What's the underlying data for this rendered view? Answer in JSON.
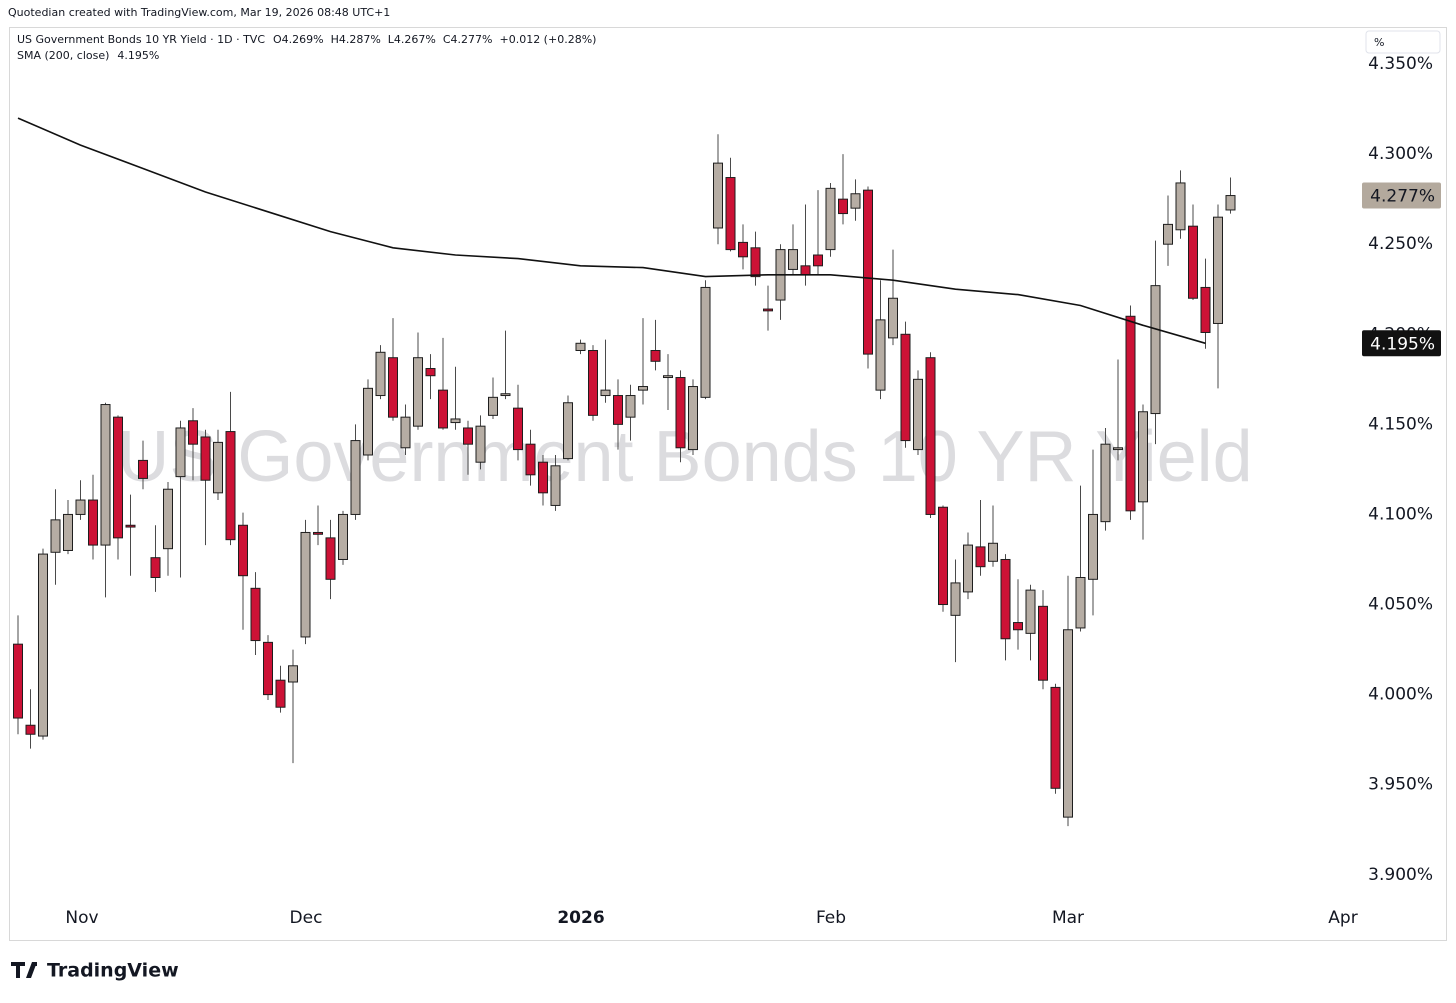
{
  "chart_data": {
    "type": "candlestick",
    "title": "US Government Bonds 10 YR Yield",
    "credit": "Quotedian created with TradingView.com, Mar 19, 2026 08:48 UTC+1",
    "symbol_line": "US Government Bonds 10 YR Yield · 1D · TVC",
    "ohlc_readout": "O4.269%  H4.287%  L4.267%  C4.277%  +0.012 (+0.28%)",
    "scale_button": "%",
    "brand": "TradingView",
    "up_color": "#b6ada4",
    "down_color": "#cc1236",
    "open": [
      4.028,
      3.983,
      3.977,
      4.079,
      4.08,
      4.1,
      4.108,
      4.083,
      4.154,
      4.094,
      4.13,
      4.076,
      4.081,
      4.121,
      4.152,
      4.143,
      4.112,
      4.146,
      4.094,
      4.059,
      4.029,
      4.008,
      4.007,
      4.032,
      4.09,
      4.087,
      4.075,
      4.1,
      4.133,
      4.166,
      4.187,
      4.137,
      4.149,
      4.181,
      4.169,
      4.151,
      4.148,
      4.129,
      4.155,
      4.166,
      4.159,
      4.139,
      4.129,
      4.105,
      4.131,
      4.191,
      4.191,
      4.166,
      4.166,
      4.154,
      4.169,
      4.191,
      4.176,
      4.176,
      4.136,
      4.165,
      4.259,
      4.287,
      4.251,
      4.248,
      4.214,
      4.219,
      4.236,
      4.238,
      4.244,
      4.247,
      4.275,
      4.27,
      4.28,
      4.169,
      4.198,
      4.2,
      4.136,
      4.187,
      4.104,
      4.044,
      4.057,
      4.082,
      4.074,
      4.075,
      4.04,
      4.034,
      4.049,
      4.004,
      3.932,
      4.037,
      4.064,
      4.096,
      4.136,
      4.21,
      4.107,
      4.156,
      4.25,
      4.258,
      4.26,
      4.226,
      4.206,
      4.269
    ],
    "high": [
      4.044,
      4.003,
      4.081,
      4.114,
      4.108,
      4.119,
      4.122,
      4.162,
      4.155,
      4.111,
      4.141,
      4.094,
      4.118,
      4.152,
      4.159,
      4.147,
      4.147,
      4.168,
      4.101,
      4.068,
      4.033,
      4.016,
      4.025,
      4.097,
      4.105,
      4.097,
      4.102,
      4.15,
      4.175,
      4.194,
      4.209,
      4.161,
      4.201,
      4.189,
      4.198,
      4.182,
      4.152,
      4.155,
      4.176,
      4.202,
      4.172,
      4.147,
      4.133,
      4.133,
      4.166,
      4.197,
      4.194,
      4.197,
      4.175,
      4.172,
      4.209,
      4.208,
      4.189,
      4.18,
      4.175,
      4.23,
      4.311,
      4.298,
      4.261,
      4.257,
      4.227,
      4.25,
      4.261,
      4.272,
      4.28,
      4.284,
      4.3,
      4.286,
      4.282,
      4.23,
      4.247,
      4.207,
      4.18,
      4.19,
      4.105,
      4.075,
      4.09,
      4.108,
      4.105,
      4.078,
      4.064,
      4.061,
      4.058,
      4.006,
      4.066,
      4.116,
      4.136,
      4.148,
      4.186,
      4.216,
      4.161,
      4.252,
      4.277,
      4.291,
      4.272,
      4.242,
      4.272,
      4.287
    ],
    "low": [
      3.978,
      3.97,
      3.975,
      4.061,
      4.078,
      4.097,
      4.075,
      4.054,
      4.075,
      4.066,
      4.114,
      4.057,
      4.066,
      4.065,
      4.119,
      4.083,
      4.108,
      4.083,
      4.036,
      4.022,
      3.997,
      3.99,
      3.962,
      4.028,
      4.083,
      4.053,
      4.072,
      4.097,
      4.13,
      4.164,
      4.152,
      4.133,
      4.147,
      4.164,
      4.147,
      4.147,
      4.122,
      4.125,
      4.153,
      4.164,
      4.13,
      4.116,
      4.105,
      4.102,
      4.13,
      4.189,
      4.152,
      4.162,
      4.136,
      4.141,
      4.161,
      4.18,
      4.158,
      4.129,
      4.133,
      4.164,
      4.25,
      4.246,
      4.236,
      4.227,
      4.202,
      4.208,
      4.233,
      4.227,
      4.233,
      4.243,
      4.261,
      4.263,
      4.181,
      4.164,
      4.194,
      4.137,
      4.133,
      4.098,
      4.046,
      4.018,
      4.053,
      4.066,
      4.071,
      4.019,
      4.025,
      4.019,
      4.003,
      3.945,
      3.927,
      4.035,
      4.044,
      4.091,
      4.13,
      4.097,
      4.086,
      4.139,
      4.238,
      4.253,
      4.219,
      4.192,
      4.17,
      4.267
    ],
    "close": [
      3.987,
      3.978,
      4.078,
      4.097,
      4.1,
      4.108,
      4.083,
      4.161,
      4.087,
      4.093,
      4.12,
      4.065,
      4.114,
      4.148,
      4.139,
      4.119,
      4.14,
      4.086,
      4.066,
      4.03,
      4.0,
      3.993,
      4.016,
      4.09,
      4.089,
      4.064,
      4.1,
      4.141,
      4.17,
      4.19,
      4.154,
      4.154,
      4.187,
      4.177,
      4.148,
      4.153,
      4.139,
      4.149,
      4.165,
      4.167,
      4.136,
      4.122,
      4.112,
      4.127,
      4.162,
      4.195,
      4.155,
      4.169,
      4.15,
      4.166,
      4.171,
      4.185,
      4.177,
      4.137,
      4.171,
      4.226,
      4.295,
      4.247,
      4.243,
      4.232,
      4.213,
      4.247,
      4.247,
      4.233,
      4.238,
      4.281,
      4.267,
      4.278,
      4.189,
      4.208,
      4.22,
      4.141,
      4.175,
      4.1,
      4.05,
      4.062,
      4.083,
      4.071,
      4.084,
      4.031,
      4.036,
      4.058,
      4.008,
      3.948,
      4.036,
      4.065,
      4.1,
      4.139,
      4.137,
      4.102,
      4.157,
      4.227,
      4.261,
      4.284,
      4.22,
      4.201,
      4.265,
      4.277
    ],
    "price_label": {
      "value": 4.277,
      "label": "4.277%",
      "color": "#b3a99d"
    },
    "overlay": {
      "name": "SMA (200, close)",
      "color": "#111111",
      "x": [
        0,
        5,
        10,
        15,
        20,
        25,
        30,
        35,
        40,
        45,
        50,
        55,
        60,
        65,
        70,
        75,
        80,
        85,
        90,
        95
      ],
      "values": [
        4.32,
        4.305,
        4.292,
        4.279,
        4.268,
        4.257,
        4.248,
        4.244,
        4.242,
        4.238,
        4.237,
        4.232,
        4.233,
        4.233,
        4.23,
        4.225,
        4.222,
        4.216,
        4.205,
        4.195
      ],
      "last_label": {
        "value": 4.195,
        "label": "4.195%"
      }
    },
    "xlim": [
      -0.64,
      107.36
    ],
    "xticks": [
      {
        "value": 5.12,
        "label": "Nov"
      },
      {
        "value": 23.04,
        "label": "Dec"
      },
      {
        "value": 45.04,
        "label": "2026"
      },
      {
        "value": 65.04,
        "label": "Feb"
      },
      {
        "value": 84,
        "label": "Mar"
      },
      {
        "value": 106,
        "label": "Apr"
      }
    ],
    "ylim": [
      3.886,
      4.37
    ],
    "yticks": [
      {
        "value": 4.35,
        "label": "4.350%"
      },
      {
        "value": 4.3,
        "label": "4.300%"
      },
      {
        "value": 4.25,
        "label": "4.250%"
      },
      {
        "value": 4.2,
        "label": "4.200%"
      },
      {
        "value": 4.15,
        "label": "4.150%"
      },
      {
        "value": 4.1,
        "label": "4.100%"
      },
      {
        "value": 4.05,
        "label": "4.050%"
      },
      {
        "value": 4.0,
        "label": "4.000%"
      },
      {
        "value": 3.95,
        "label": "3.950%"
      },
      {
        "value": 3.9,
        "label": "3.900%"
      }
    ]
  }
}
